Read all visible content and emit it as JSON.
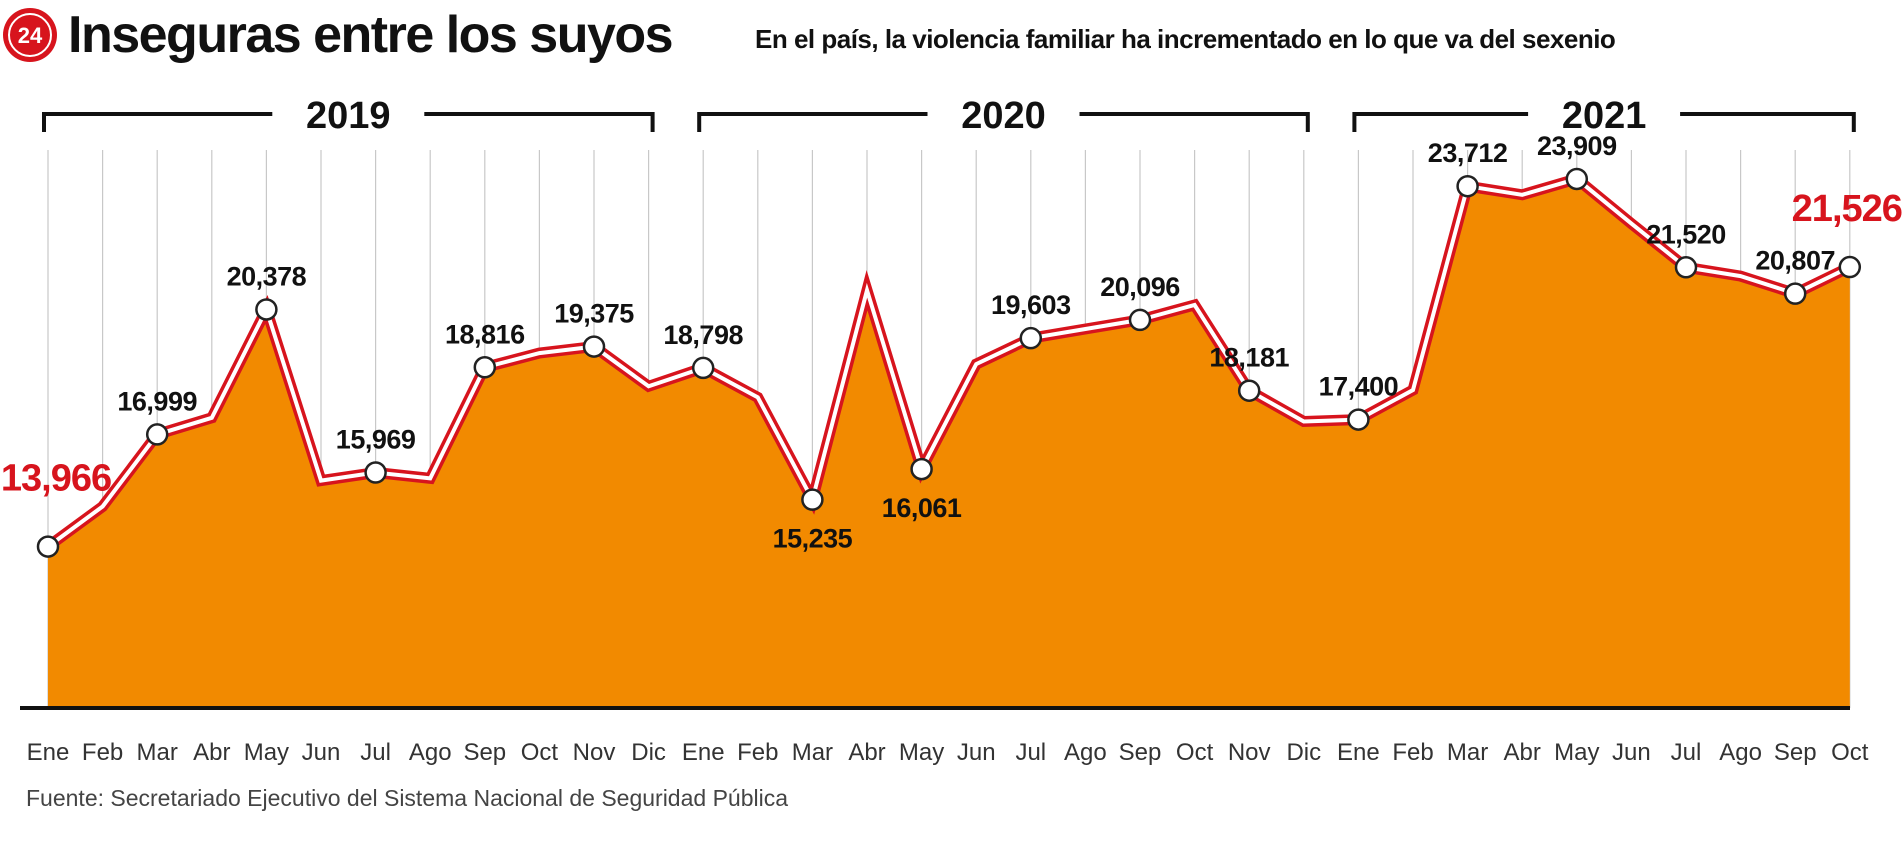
{
  "header": {
    "title": "Inseguras entre los suyos",
    "subtitle": "En el país, la violencia familiar ha incrementado en lo que va del sexenio",
    "logo_text": "24"
  },
  "source": "Fuente: Secretariado Ejecutivo del Sistema Nacional de Seguridad Pública",
  "colors": {
    "area": "#f28a00",
    "line_outer": "#d7141d",
    "line_inner": "#ffffff",
    "highlight": "#d7141d",
    "axis": "#111111",
    "grid": "#c8c8c8"
  },
  "chart_data": {
    "type": "area",
    "years": [
      {
        "label": "2019",
        "start": 0,
        "end": 11
      },
      {
        "label": "2020",
        "start": 12,
        "end": 23
      },
      {
        "label": "2021",
        "start": 24,
        "end": 33
      }
    ],
    "categories": [
      "Ene",
      "Feb",
      "Mar",
      "Abr",
      "May",
      "Jun",
      "Jul",
      "Ago",
      "Sep",
      "Oct",
      "Nov",
      "Dic",
      "Ene",
      "Feb",
      "Mar",
      "Abr",
      "May",
      "Jun",
      "Jul",
      "Ago",
      "Sep",
      "Oct",
      "Nov",
      "Dic",
      "Ene",
      "Feb",
      "Mar",
      "Abr",
      "May",
      "Jun",
      "Jul",
      "Ago",
      "Sep",
      "Oct"
    ],
    "values": [
      13966,
      15050,
      16999,
      17450,
      20378,
      15750,
      15969,
      15810,
      18816,
      19200,
      19375,
      18300,
      18798,
      18000,
      15235,
      20900,
      16061,
      18900,
      19603,
      19850,
      20096,
      20500,
      18181,
      17350,
      17400,
      18200,
      23712,
      23480,
      23909,
      22700,
      21520,
      21280,
      20807,
      21526
    ],
    "labels": [
      {
        "index": 0,
        "text": "13,966",
        "highlight": true
      },
      {
        "index": 2,
        "text": "16,999",
        "highlight": false
      },
      {
        "index": 4,
        "text": "20,378",
        "highlight": false
      },
      {
        "index": 6,
        "text": "15,969",
        "highlight": false
      },
      {
        "index": 8,
        "text": "18,816",
        "highlight": false
      },
      {
        "index": 10,
        "text": "19,375",
        "highlight": false
      },
      {
        "index": 12,
        "text": "18,798",
        "highlight": false
      },
      {
        "index": 14,
        "text": "15,235",
        "highlight": false
      },
      {
        "index": 16,
        "text": "16,061",
        "highlight": false
      },
      {
        "index": 18,
        "text": "19,603",
        "highlight": false
      },
      {
        "index": 20,
        "text": "20,096",
        "highlight": false
      },
      {
        "index": 22,
        "text": "18,181",
        "highlight": false
      },
      {
        "index": 24,
        "text": "17,400",
        "highlight": false
      },
      {
        "index": 26,
        "text": "23,712",
        "highlight": false
      },
      {
        "index": 28,
        "text": "23,909",
        "highlight": false
      },
      {
        "index": 30,
        "text": "21,520",
        "highlight": false
      },
      {
        "index": 32,
        "text": "20,807",
        "highlight": false
      },
      {
        "index": 33,
        "text": "21,526",
        "highlight": true
      }
    ],
    "ylim": [
      9600,
      24800
    ],
    "grid": true,
    "xlabel": "",
    "ylabel": ""
  }
}
